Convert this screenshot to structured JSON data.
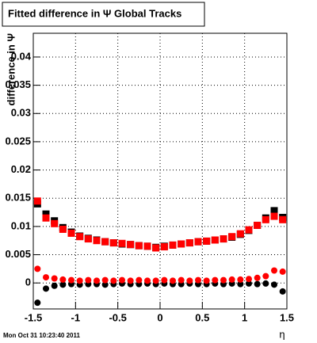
{
  "chart_data": {
    "type": "scatter",
    "title": "Fitted difference in Ψ   Global Tracks",
    "x_label": "η",
    "y_label": "difference in Ψ",
    "footer": "Mon Oct 31 10:23:40 2011",
    "xlim": [
      -1.5,
      1.5
    ],
    "ylim": [
      -0.0046,
      0.0442
    ],
    "xticks": [
      -1.5,
      -1,
      -0.5,
      0,
      0.5,
      1,
      1.5
    ],
    "yticks": [
      0,
      0.005,
      0.01,
      0.015,
      0.02,
      0.025,
      0.03,
      0.035,
      0.04
    ],
    "grid": true,
    "x": [
      -1.45,
      -1.35,
      -1.25,
      -1.15,
      -1.05,
      -0.95,
      -0.85,
      -0.75,
      -0.65,
      -0.55,
      -0.45,
      -0.35,
      -0.25,
      -0.15,
      -0.05,
      0.05,
      0.15,
      0.25,
      0.35,
      0.45,
      0.55,
      0.65,
      0.75,
      0.85,
      0.95,
      1.05,
      1.15,
      1.25,
      1.35,
      1.45
    ],
    "series": [
      {
        "color": "#000000",
        "marker": "square",
        "values": [
          0.014,
          0.0122,
          0.011,
          0.0098,
          0.009,
          0.0083,
          0.0079,
          0.0076,
          0.0073,
          0.0071,
          0.0069,
          0.0068,
          0.0066,
          0.0065,
          0.0063,
          0.0065,
          0.0067,
          0.0069,
          0.0071,
          0.0073,
          0.0074,
          0.0076,
          0.0078,
          0.0081,
          0.0086,
          0.0093,
          0.0102,
          0.0115,
          0.0128,
          0.0116
        ]
      },
      {
        "color": "#ff0000",
        "marker": "square",
        "values": [
          0.0145,
          0.0115,
          0.0105,
          0.0095,
          0.0088,
          0.0082,
          0.0078,
          0.0075,
          0.0073,
          0.0071,
          0.007,
          0.0068,
          0.0066,
          0.0065,
          0.0062,
          0.0064,
          0.0067,
          0.0069,
          0.0071,
          0.0073,
          0.0074,
          0.0076,
          0.0078,
          0.0082,
          0.0087,
          0.0094,
          0.0102,
          0.0112,
          0.0118,
          0.0112
        ]
      },
      {
        "color": "#000000",
        "marker": "circle",
        "values": [
          -0.0035,
          -0.001,
          -0.0005,
          -0.0003,
          -0.0002,
          -0.0003,
          -0.0002,
          -0.0002,
          -0.0003,
          -0.0002,
          -0.0001,
          -0.0002,
          -0.0002,
          -0.0001,
          -0.0002,
          -0.0001,
          -0.0002,
          -0.0002,
          -0.0001,
          -0.0002,
          -0.0002,
          -0.0001,
          -0.0002,
          -0.0001,
          -0.0002,
          -0.0001,
          -0.0002,
          -0.0001,
          -0.0003,
          -0.0015
        ]
      },
      {
        "color": "#ff0000",
        "marker": "circle",
        "values": [
          0.0025,
          0.001,
          0.0008,
          0.0006,
          0.0005,
          0.0004,
          0.0005,
          0.0004,
          0.0005,
          0.0004,
          0.0005,
          0.0004,
          0.0005,
          0.0004,
          0.0004,
          0.0005,
          0.0004,
          0.0005,
          0.0004,
          0.0005,
          0.0004,
          0.0005,
          0.0005,
          0.0006,
          0.0006,
          0.0007,
          0.0009,
          0.0012,
          0.0022,
          0.002
        ]
      }
    ]
  }
}
